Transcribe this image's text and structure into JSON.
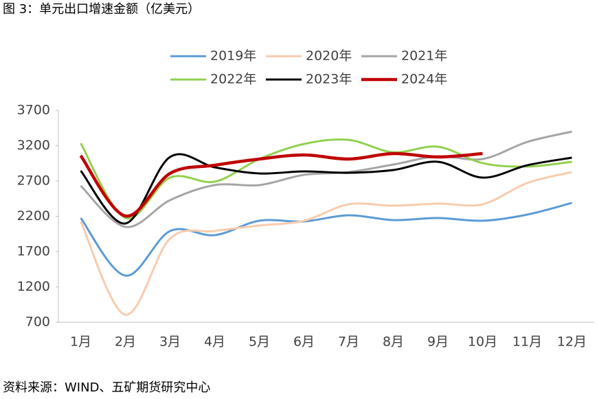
{
  "chart_data": {
    "type": "line",
    "title": "图 3：单元出口增速金额（亿美元）",
    "source": "资料来源：WIND、五矿期货研究中心",
    "categories": [
      "1月",
      "2月",
      "3月",
      "4月",
      "5月",
      "6月",
      "7月",
      "8月",
      "9月",
      "10月",
      "11月",
      "12月"
    ],
    "ylim": [
      700,
      3700
    ],
    "yticks": [
      700,
      1200,
      1700,
      2200,
      2700,
      3200,
      3700
    ],
    "grid": false,
    "series": [
      {
        "name": "2019年",
        "color": "#5b9bd5",
        "values": [
          2176,
          1360,
          1991,
          1933,
          2137,
          2127,
          2215,
          2146,
          2176,
          2137,
          2224,
          2390
        ]
      },
      {
        "name": "2020年",
        "color": "#f8cbad",
        "values": [
          2127,
          807,
          1884,
          1991,
          2069,
          2137,
          2370,
          2350,
          2380,
          2370,
          2671,
          2826
        ]
      },
      {
        "name": "2021年",
        "color": "#a5a5a5",
        "values": [
          2632,
          2050,
          2428,
          2642,
          2642,
          2787,
          2826,
          2933,
          3049,
          3011,
          3253,
          3399
        ]
      },
      {
        "name": "2022年",
        "color": "#92d050",
        "values": [
          3234,
          2176,
          2748,
          2690,
          3011,
          3224,
          3282,
          3107,
          3185,
          2953,
          2904,
          2972
        ]
      },
      {
        "name": "2023年",
        "color": "#000000",
        "values": [
          2845,
          2098,
          3040,
          2894,
          2807,
          2836,
          2816,
          2855,
          2972,
          2748,
          2923,
          3030
        ]
      },
      {
        "name": "2024年",
        "color": "#c00000",
        "values": [
          3059,
          2205,
          2807,
          2923,
          3011,
          3069,
          3011,
          3088,
          3040,
          3088,
          null,
          null
        ]
      }
    ]
  }
}
